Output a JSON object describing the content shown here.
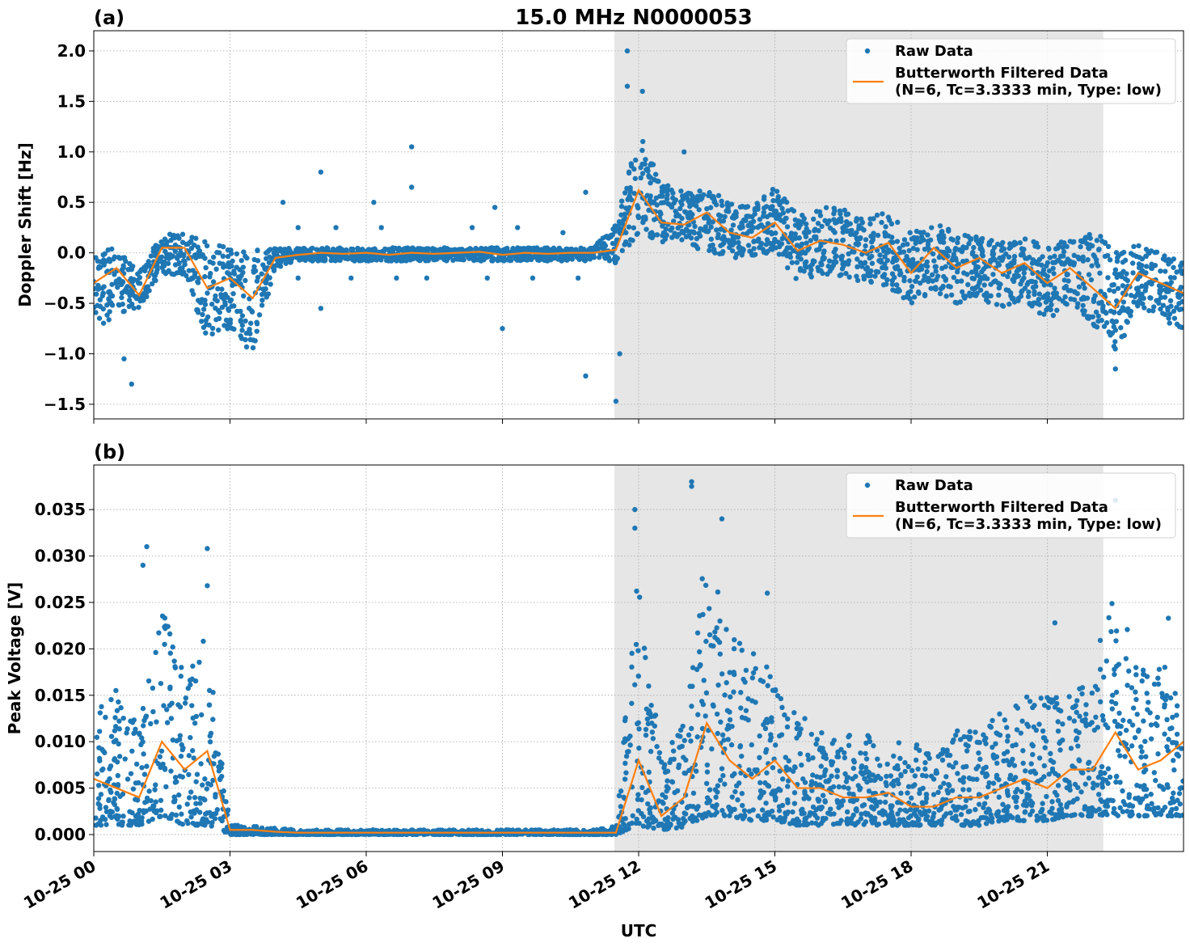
{
  "figure_title": "15.0 MHz N0000053",
  "colors": {
    "raw": "#1f77b4",
    "filtered": "#ff7f0e",
    "highlight": "#e6e6e6",
    "grid": "#b0b0b0"
  },
  "chart_data": [
    {
      "type": "scatter",
      "panel_label": "(a)",
      "title": "15.0 MHz N0000053",
      "xlabel": "",
      "ylabel": "Doppler Shift [Hz]",
      "ylim": [
        -1.645,
        2.2
      ],
      "xlim": [
        "10-25 00:00",
        "10-26 00:00"
      ],
      "yticks": [
        2.0,
        1.5,
        1.0,
        0.5,
        0.0,
        -0.5,
        -1.0,
        -1.5
      ],
      "ytick_labels": [
        "2.0",
        "1.5",
        "1.0",
        "0.5",
        "0.0",
        "−0.5",
        "−1.0",
        "−1.5"
      ],
      "grid": true,
      "legend_placement": "top-right",
      "legend": [
        "Raw Data",
        "Butterworth Filtered Data",
        "(N=6, Tc=3.3333 min, Type: low)"
      ],
      "highlight_span": [
        "10-25 11:28",
        "10-25 22:14"
      ],
      "x": [
        "10-25 00:00",
        "10-25 00:30",
        "10-25 01:00",
        "10-25 01:30",
        "10-25 02:00",
        "10-25 02:30",
        "10-25 03:00",
        "10-25 03:30",
        "10-25 04:00",
        "10-25 04:30",
        "10-25 05:00",
        "10-25 05:30",
        "10-25 06:00",
        "10-25 06:30",
        "10-25 07:00",
        "10-25 07:30",
        "10-25 08:00",
        "10-25 08:30",
        "10-25 09:00",
        "10-25 09:30",
        "10-25 10:00",
        "10-25 10:30",
        "10-25 11:00",
        "10-25 11:30",
        "10-25 12:00",
        "10-25 12:30",
        "10-25 13:00",
        "10-25 13:30",
        "10-25 14:00",
        "10-25 14:30",
        "10-25 15:00",
        "10-25 15:30",
        "10-25 16:00",
        "10-25 16:30",
        "10-25 17:00",
        "10-25 17:30",
        "10-25 18:00",
        "10-25 18:30",
        "10-25 19:00",
        "10-25 19:30",
        "10-25 20:00",
        "10-25 20:30",
        "10-25 21:00",
        "10-25 21:30",
        "10-25 22:00",
        "10-25 22:30",
        "10-25 23:00",
        "10-25 23:30",
        "10-26 00:00"
      ],
      "series": [
        {
          "name": "Butterworth Filtered Data",
          "kind": "line",
          "values": [
            -0.3,
            -0.15,
            -0.42,
            0.05,
            0.05,
            -0.35,
            -0.25,
            -0.45,
            -0.05,
            -0.02,
            0.0,
            -0.01,
            0.0,
            -0.02,
            0.0,
            -0.01,
            0.0,
            0.01,
            -0.02,
            0.0,
            -0.01,
            0.0,
            0.0,
            0.03,
            0.62,
            0.3,
            0.28,
            0.4,
            0.2,
            0.15,
            0.3,
            0.02,
            0.12,
            0.08,
            0.0,
            0.1,
            -0.2,
            0.05,
            -0.15,
            -0.05,
            -0.2,
            -0.1,
            -0.3,
            -0.15,
            -0.35,
            -0.55,
            -0.2,
            -0.3,
            -0.4
          ]
        },
        {
          "name": "Raw Data",
          "kind": "scatter",
          "low": [
            -0.8,
            -0.6,
            -0.55,
            -0.2,
            -0.25,
            -0.85,
            -0.75,
            -1.0,
            -0.15,
            -0.08,
            -0.08,
            -0.08,
            -0.08,
            -0.08,
            -0.08,
            -0.08,
            -0.08,
            -0.08,
            -0.08,
            -0.08,
            -0.08,
            -0.08,
            -0.08,
            -0.1,
            0.2,
            0.1,
            0.1,
            0.0,
            -0.05,
            -0.05,
            0.0,
            -0.3,
            -0.2,
            -0.25,
            -0.3,
            -0.35,
            -0.5,
            -0.4,
            -0.5,
            -0.45,
            -0.55,
            -0.5,
            -0.65,
            -0.55,
            -0.7,
            -1.0,
            -0.55,
            -0.65,
            -0.8
          ],
          "high": [
            0.0,
            0.05,
            -0.2,
            0.2,
            0.2,
            0.1,
            0.1,
            0.05,
            0.05,
            0.05,
            0.05,
            0.05,
            0.05,
            0.05,
            0.05,
            0.05,
            0.05,
            0.05,
            0.05,
            0.05,
            0.05,
            0.05,
            0.05,
            0.3,
            1.2,
            0.7,
            0.6,
            0.65,
            0.5,
            0.45,
            0.65,
            0.4,
            0.45,
            0.45,
            0.35,
            0.4,
            0.2,
            0.3,
            0.25,
            0.15,
            0.1,
            0.15,
            0.05,
            0.15,
            0.25,
            0.0,
            0.1,
            0.0,
            -0.1
          ],
          "outliers": [
            [
              "10-25 00:50",
              -1.3
            ],
            [
              "10-25 00:40",
              -1.05
            ],
            [
              "10-25 04:10",
              0.5
            ],
            [
              "10-25 04:30",
              0.25
            ],
            [
              "10-25 04:30",
              -0.25
            ],
            [
              "10-25 05:00",
              0.8
            ],
            [
              "10-25 05:00",
              -0.55
            ],
            [
              "10-25 05:20",
              0.25
            ],
            [
              "10-25 05:40",
              -0.25
            ],
            [
              "10-25 06:10",
              0.5
            ],
            [
              "10-25 06:20",
              0.25
            ],
            [
              "10-25 06:40",
              -0.25
            ],
            [
              "10-25 07:00",
              1.05
            ],
            [
              "10-25 07:00",
              0.65
            ],
            [
              "10-25 07:20",
              -0.25
            ],
            [
              "10-25 08:20",
              0.25
            ],
            [
              "10-25 08:40",
              -0.25
            ],
            [
              "10-25 08:50",
              0.45
            ],
            [
              "10-25 09:00",
              -0.75
            ],
            [
              "10-25 09:20",
              0.25
            ],
            [
              "10-25 09:40",
              -0.25
            ],
            [
              "10-25 10:20",
              0.2
            ],
            [
              "10-25 10:40",
              -0.25
            ],
            [
              "10-25 10:50",
              -1.22
            ],
            [
              "10-25 10:50",
              0.6
            ],
            [
              "10-25 11:30",
              -1.47
            ],
            [
              "10-25 11:35",
              -1.0
            ],
            [
              "10-25 11:45",
              2.0
            ],
            [
              "10-25 11:45",
              1.65
            ],
            [
              "10-25 12:05",
              1.6
            ],
            [
              "10-25 13:00",
              1.0
            ],
            [
              "10-25 22:30",
              -1.15
            ]
          ]
        }
      ]
    },
    {
      "type": "scatter",
      "panel_label": "(b)",
      "xlabel": "UTC",
      "ylabel": "Peak Voltage [V]",
      "ylim": [
        -0.00183,
        0.0398
      ],
      "xlim": [
        "10-25 00:00",
        "10-26 00:00"
      ],
      "yticks": [
        0.035,
        0.03,
        0.025,
        0.02,
        0.015,
        0.01,
        0.005,
        0.0
      ],
      "ytick_labels": [
        "0.035",
        "0.030",
        "0.025",
        "0.020",
        "0.015",
        "0.010",
        "0.005",
        "0.000"
      ],
      "xtick_labels": [
        "10-25 00",
        "10-25 03",
        "10-25 06",
        "10-25 09",
        "10-25 12",
        "10-25 15",
        "10-25 18",
        "10-25 21"
      ],
      "grid": true,
      "legend_placement": "top-right",
      "legend": [
        "Raw Data",
        "Butterworth Filtered Data",
        "(N=6, Tc=3.3333 min, Type: low)"
      ],
      "highlight_span": [
        "10-25 11:28",
        "10-25 22:14"
      ],
      "series": [
        {
          "name": "Butterworth Filtered Data",
          "kind": "line",
          "values": [
            0.006,
            0.005,
            0.004,
            0.01,
            0.007,
            0.009,
            0.0005,
            0.0005,
            0.0003,
            0.0002,
            0.0002,
            0.0002,
            0.0002,
            0.0002,
            0.0002,
            0.0002,
            0.0002,
            0.0002,
            0.0002,
            0.0002,
            0.0002,
            0.0002,
            0.0002,
            0.0002,
            0.008,
            0.002,
            0.004,
            0.012,
            0.008,
            0.006,
            0.008,
            0.005,
            0.005,
            0.004,
            0.004,
            0.0045,
            0.003,
            0.003,
            0.004,
            0.004,
            0.005,
            0.006,
            0.005,
            0.007,
            0.007,
            0.011,
            0.007,
            0.008,
            0.01
          ]
        },
        {
          "name": "Raw Data",
          "kind": "scatter",
          "low": [
            0.001,
            0.001,
            0.001,
            0.002,
            0.001,
            0.001,
            0.0,
            0.0,
            0.0,
            0.0,
            0.0,
            0.0,
            0.0,
            0.0,
            0.0,
            0.0,
            0.0,
            0.0,
            0.0,
            0.0,
            0.0,
            0.0,
            0.0,
            0.0,
            0.001,
            0.0005,
            0.0008,
            0.002,
            0.002,
            0.0015,
            0.0015,
            0.001,
            0.001,
            0.001,
            0.001,
            0.001,
            0.001,
            0.001,
            0.001,
            0.001,
            0.0015,
            0.0015,
            0.0015,
            0.002,
            0.002,
            0.002,
            0.002,
            0.002,
            0.002
          ],
          "high": [
            0.013,
            0.016,
            0.012,
            0.025,
            0.017,
            0.022,
            0.001,
            0.001,
            0.0007,
            0.0005,
            0.0005,
            0.0005,
            0.0005,
            0.0005,
            0.0005,
            0.0005,
            0.0005,
            0.0005,
            0.0005,
            0.0005,
            0.0005,
            0.0005,
            0.0005,
            0.001,
            0.03,
            0.008,
            0.012,
            0.032,
            0.022,
            0.02,
            0.018,
            0.014,
            0.012,
            0.011,
            0.011,
            0.01,
            0.01,
            0.009,
            0.012,
            0.011,
            0.014,
            0.016,
            0.015,
            0.016,
            0.017,
            0.03,
            0.018,
            0.02,
            0.016
          ],
          "outliers": [
            [
              "10-25 01:10",
              0.031
            ],
            [
              "10-25 01:05",
              0.029
            ],
            [
              "10-25 02:30",
              0.0308
            ],
            [
              "10-25 02:30",
              0.0268
            ],
            [
              "10-25 11:55",
              0.035
            ],
            [
              "10-25 11:55",
              0.033
            ],
            [
              "10-25 13:10",
              0.038
            ],
            [
              "10-25 13:10",
              0.0375
            ],
            [
              "10-25 13:50",
              0.034
            ],
            [
              "10-25 14:50",
              0.026
            ],
            [
              "10-25 21:10",
              0.0228
            ],
            [
              "10-25 22:30",
              0.036
            ],
            [
              "10-25 23:40",
              0.0233
            ]
          ]
        }
      ]
    }
  ]
}
